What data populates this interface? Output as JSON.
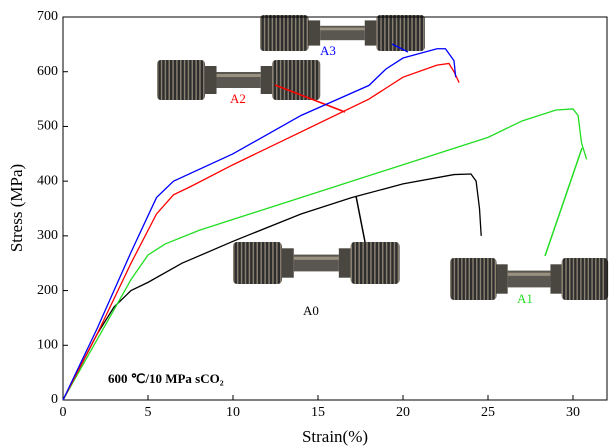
{
  "chart_data": {
    "type": "line",
    "xlabel": "Strain(%)",
    "ylabel": "Stress (MPa)",
    "annotation": "600 ℃/10 MPa sCO₂",
    "xlim": [
      0,
      32
    ],
    "ylim": [
      0,
      700
    ],
    "xticks": [
      0,
      5,
      10,
      15,
      20,
      25,
      30
    ],
    "yticks": [
      0,
      100,
      200,
      300,
      400,
      500,
      600,
      700
    ],
    "series": [
      {
        "name": "A0",
        "color": "#000000",
        "x": [
          0,
          2,
          3,
          4,
          5,
          7,
          10,
          14,
          15,
          17,
          20,
          23,
          24,
          24.3,
          24.5,
          24.6
        ],
        "values": [
          0,
          120,
          170,
          200,
          215,
          250,
          290,
          340,
          350,
          370,
          395,
          412,
          413,
          400,
          350,
          300
        ]
      },
      {
        "name": "A1",
        "color": "#22dd22",
        "x": [
          0,
          2,
          4,
          5,
          6,
          8,
          12,
          16,
          20,
          25,
          27,
          29,
          30,
          30.3,
          30.5,
          30.8
        ],
        "values": [
          0,
          110,
          220,
          265,
          285,
          310,
          350,
          390,
          430,
          480,
          510,
          530,
          532,
          520,
          470,
          440
        ]
      },
      {
        "name": "A2",
        "color": "#ff0000",
        "x": [
          0,
          2,
          4,
          5.5,
          6.5,
          7.5,
          10,
          14,
          18,
          19,
          20,
          22,
          22.7,
          23,
          23.3
        ],
        "values": [
          0,
          120,
          250,
          340,
          375,
          390,
          430,
          490,
          550,
          570,
          590,
          612,
          615,
          600,
          580
        ]
      },
      {
        "name": "A3",
        "color": "#0000ff",
        "x": [
          0,
          2,
          4,
          5.5,
          6.5,
          10,
          14,
          18,
          19,
          20,
          22,
          22.5,
          23,
          23.1
        ],
        "values": [
          0,
          130,
          270,
          370,
          400,
          450,
          520,
          575,
          605,
          625,
          642,
          642,
          620,
          590
        ]
      }
    ]
  }
}
